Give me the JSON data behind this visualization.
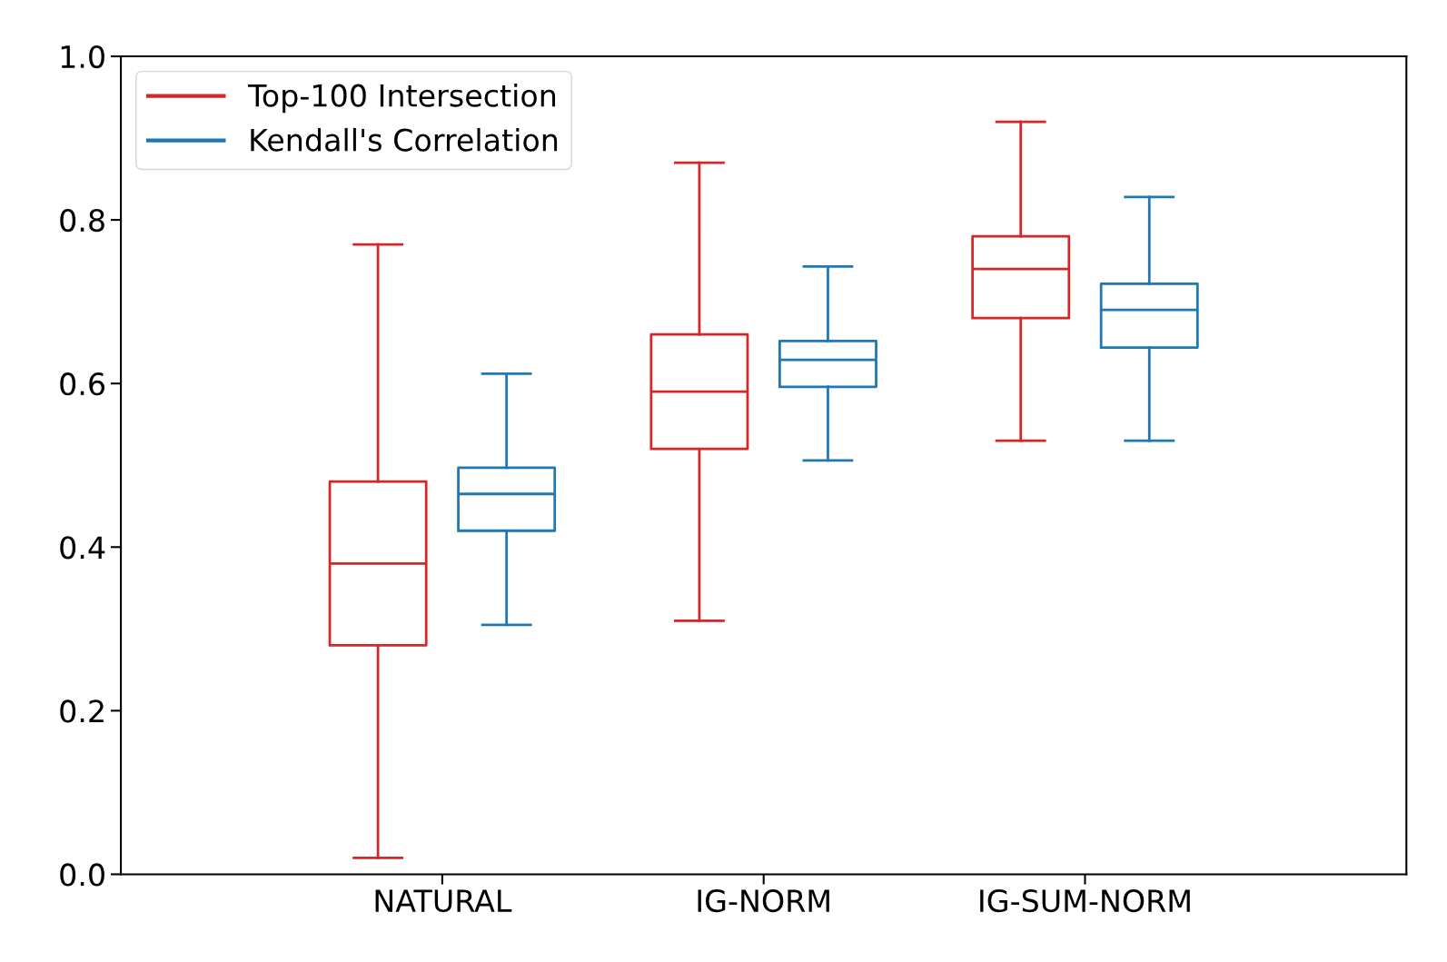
{
  "chart_data": {
    "type": "box",
    "categories": [
      "NATURAL",
      "IG-NORM",
      "IG-SUM-NORM"
    ],
    "series": [
      {
        "name": "Top-100 Intersection",
        "color": "#d62728",
        "boxes": [
          {
            "low": 0.02,
            "q1": 0.28,
            "median": 0.38,
            "q3": 0.48,
            "high": 0.77
          },
          {
            "low": 0.31,
            "q1": 0.52,
            "median": 0.59,
            "q3": 0.66,
            "high": 0.87
          },
          {
            "low": 0.53,
            "q1": 0.68,
            "median": 0.74,
            "q3": 0.78,
            "high": 0.92
          }
        ]
      },
      {
        "name": "Kendall's Correlation",
        "color": "#1f77b4",
        "boxes": [
          {
            "low": 0.305,
            "q1": 0.42,
            "median": 0.465,
            "q3": 0.497,
            "high": 0.612
          },
          {
            "low": 0.506,
            "q1": 0.596,
            "median": 0.629,
            "q3": 0.652,
            "high": 0.743
          },
          {
            "low": 0.53,
            "q1": 0.644,
            "median": 0.69,
            "q3": 0.722,
            "high": 0.828
          }
        ]
      }
    ],
    "ylim": [
      0,
      1
    ],
    "yticks": [
      {
        "value": 0,
        "label": "0.0"
      },
      {
        "value": 0.2,
        "label": "0.2"
      },
      {
        "value": 0.4,
        "label": "0.4"
      },
      {
        "value": 0.6,
        "label": "0.6"
      },
      {
        "value": 0.8,
        "label": "0.8"
      },
      {
        "value": 1,
        "label": "1.0"
      }
    ],
    "legend": "top left",
    "grid": false
  }
}
